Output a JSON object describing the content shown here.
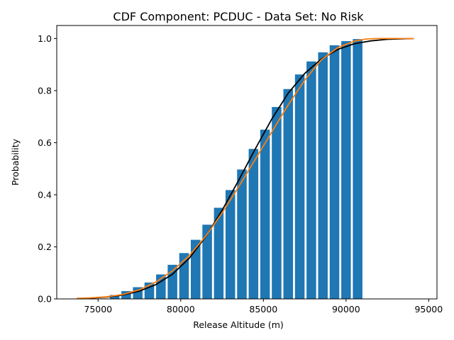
{
  "chart_data": {
    "type": "bar",
    "title": "CDF Component: PCDUC - Data Set: No Risk",
    "xlabel": "Release Altitude (m)",
    "ylabel": "Probability",
    "xlim": [
      72500,
      95500
    ],
    "ylim": [
      0,
      1.05
    ],
    "xticks": [
      75000,
      80000,
      85000,
      90000,
      95000
    ],
    "xtick_labels": [
      "75000",
      "80000",
      "85000",
      "90000",
      "95000"
    ],
    "yticks": [
      0.0,
      0.2,
      0.4,
      0.6,
      0.8,
      1.0
    ],
    "ytick_labels": [
      "0.0",
      "0.2",
      "0.4",
      "0.6",
      "0.8",
      "1.0"
    ],
    "grid": false,
    "bars": {
      "color": "#1f77b4",
      "width": 580,
      "x": [
        76000,
        76700,
        77400,
        78100,
        78800,
        79500,
        80200,
        80900,
        81600,
        82300,
        83000,
        83700,
        84400,
        85100,
        85800,
        86500,
        87200,
        87900,
        88600,
        89300,
        90000,
        90700
      ],
      "values": [
        0.015,
        0.03,
        0.045,
        0.063,
        0.094,
        0.131,
        0.176,
        0.227,
        0.285,
        0.35,
        0.418,
        0.497,
        0.576,
        0.65,
        0.737,
        0.806,
        0.862,
        0.912,
        0.947,
        0.974,
        0.99,
        0.998
      ]
    },
    "series": [
      {
        "color": "#000000",
        "x": [
          73700,
          74500,
          75500,
          76500,
          77500,
          78500,
          79500,
          80500,
          81500,
          82500,
          83500,
          84500,
          85500,
          86500,
          87500,
          88500,
          89500,
          90500,
          91500,
          92500,
          93500,
          94100
        ],
        "values": [
          0.001,
          0.003,
          0.007,
          0.015,
          0.03,
          0.055,
          0.095,
          0.155,
          0.238,
          0.34,
          0.455,
          0.575,
          0.69,
          0.79,
          0.866,
          0.921,
          0.958,
          0.98,
          0.991,
          0.997,
          0.999,
          1.0
        ]
      },
      {
        "color": "#ff7f0e",
        "x": [
          73700,
          74500,
          75500,
          76500,
          77500,
          78500,
          79500,
          80500,
          81500,
          82500,
          83500,
          84500,
          85500,
          86500,
          87500,
          88500,
          89500,
          90500,
          91200,
          91800,
          92500,
          93500,
          94100
        ],
        "values": [
          0.002,
          0.004,
          0.008,
          0.017,
          0.035,
          0.065,
          0.108,
          0.165,
          0.24,
          0.33,
          0.43,
          0.535,
          0.64,
          0.745,
          0.84,
          0.918,
          0.965,
          0.99,
          0.998,
          1.0,
          1.0,
          1.0,
          1.0
        ]
      }
    ]
  }
}
